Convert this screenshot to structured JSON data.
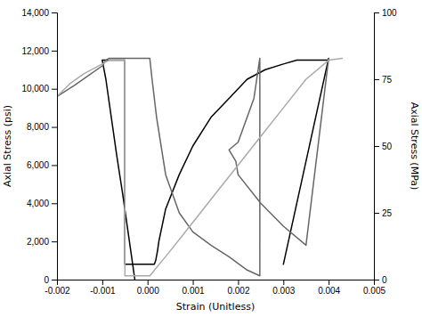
{
  "chart_data": {
    "type": "line",
    "xlabel": "Strain (Unitless)",
    "ylabel": "Axial Stress (psi)",
    "y2label": "Axial Stress (MPa)",
    "xlim": [
      -0.002,
      0.005
    ],
    "ylim": [
      0,
      14000
    ],
    "y2lim": [
      0,
      100
    ],
    "xticks": [
      -0.002,
      -0.001,
      {
        "value": 0,
        "label": "0.000"
      },
      0.001,
      0.002,
      0.003,
      0.004,
      0.005
    ],
    "yticks": [
      0,
      {
        "value": 2000,
        "label": "2,000"
      },
      {
        "value": 4000,
        "label": "4,000"
      },
      {
        "value": 6000,
        "label": "6,000"
      },
      {
        "value": 8000,
        "label": "8,000"
      },
      {
        "value": 10000,
        "label": "10,000"
      },
      {
        "value": 12000,
        "label": "12,000"
      },
      {
        "value": 14000,
        "label": "14,000"
      }
    ],
    "y2ticks": [
      0,
      25,
      50,
      75,
      100
    ],
    "grid": false,
    "series": [
      {
        "color": "#000000",
        "x": [
          -0.00028,
          -0.0004,
          -0.00055,
          -0.00068,
          -0.0008,
          -0.00092,
          -0.001,
          -0.001,
          -0.00095,
          -0.0008,
          -0.00065,
          -0.0005,
          -0.0005,
          -0.0005,
          -0.0005,
          0.00015,
          0.00018,
          0.00022,
          0.00025,
          0.0004,
          0.0007,
          0.001,
          0.0014,
          0.0018,
          0.0022,
          0.0026,
          0.003,
          0.0033,
          0.0036,
          0.0038,
          0.004,
          0.004,
          0.003
        ],
        "values": [
          0,
          2000,
          4500,
          6500,
          8500,
          10500,
          11500,
          11500,
          11500,
          11500,
          11500,
          11500,
          10000,
          2000,
          800,
          800,
          1000,
          1500,
          2000,
          3700,
          5500,
          7000,
          8500,
          9500,
          10500,
          11000,
          11300,
          11500,
          11500,
          11500,
          11500,
          11600,
          800
        ]
      },
      {
        "color": "#666666",
        "x": [
          -0.002,
          -0.0016,
          -0.0013,
          -0.001,
          -0.00092,
          -0.00085,
          -0.00085,
          -0.00085,
          5e-05,
          0.0001,
          0.0002,
          0.0004,
          0.0007,
          0.001,
          0.0014,
          0.0018,
          0.0022,
          0.00248,
          0.00248,
          0.00235,
          0.002,
          0.0018,
          0.00195,
          0.002,
          0.0025,
          0.003,
          0.0035,
          0.004
        ],
        "values": [
          9600,
          10200,
          10700,
          11200,
          11500,
          11600,
          11600,
          11600,
          11600,
          10500,
          8500,
          5500,
          3500,
          2500,
          1800,
          1200,
          500,
          200,
          11600,
          9500,
          7200,
          6800,
          6200,
          5500,
          4000,
          2800,
          1800,
          11600
        ]
      },
      {
        "color": "#aaaaaa",
        "x": [
          -0.002,
          -0.0017,
          -0.0014,
          -0.001,
          -0.00085,
          -0.0007,
          -0.0006,
          -0.0005,
          -0.0005,
          5e-05,
          0.0005,
          0.001,
          0.0015,
          0.002,
          0.0025,
          0.003,
          0.0035,
          0.004,
          0.0043
        ],
        "values": [
          9600,
          10300,
          10800,
          11300,
          11500,
          11500,
          11500,
          11500,
          200,
          200,
          1500,
          3000,
          4500,
          6000,
          7500,
          9000,
          10500,
          11500,
          11600
        ]
      }
    ]
  }
}
